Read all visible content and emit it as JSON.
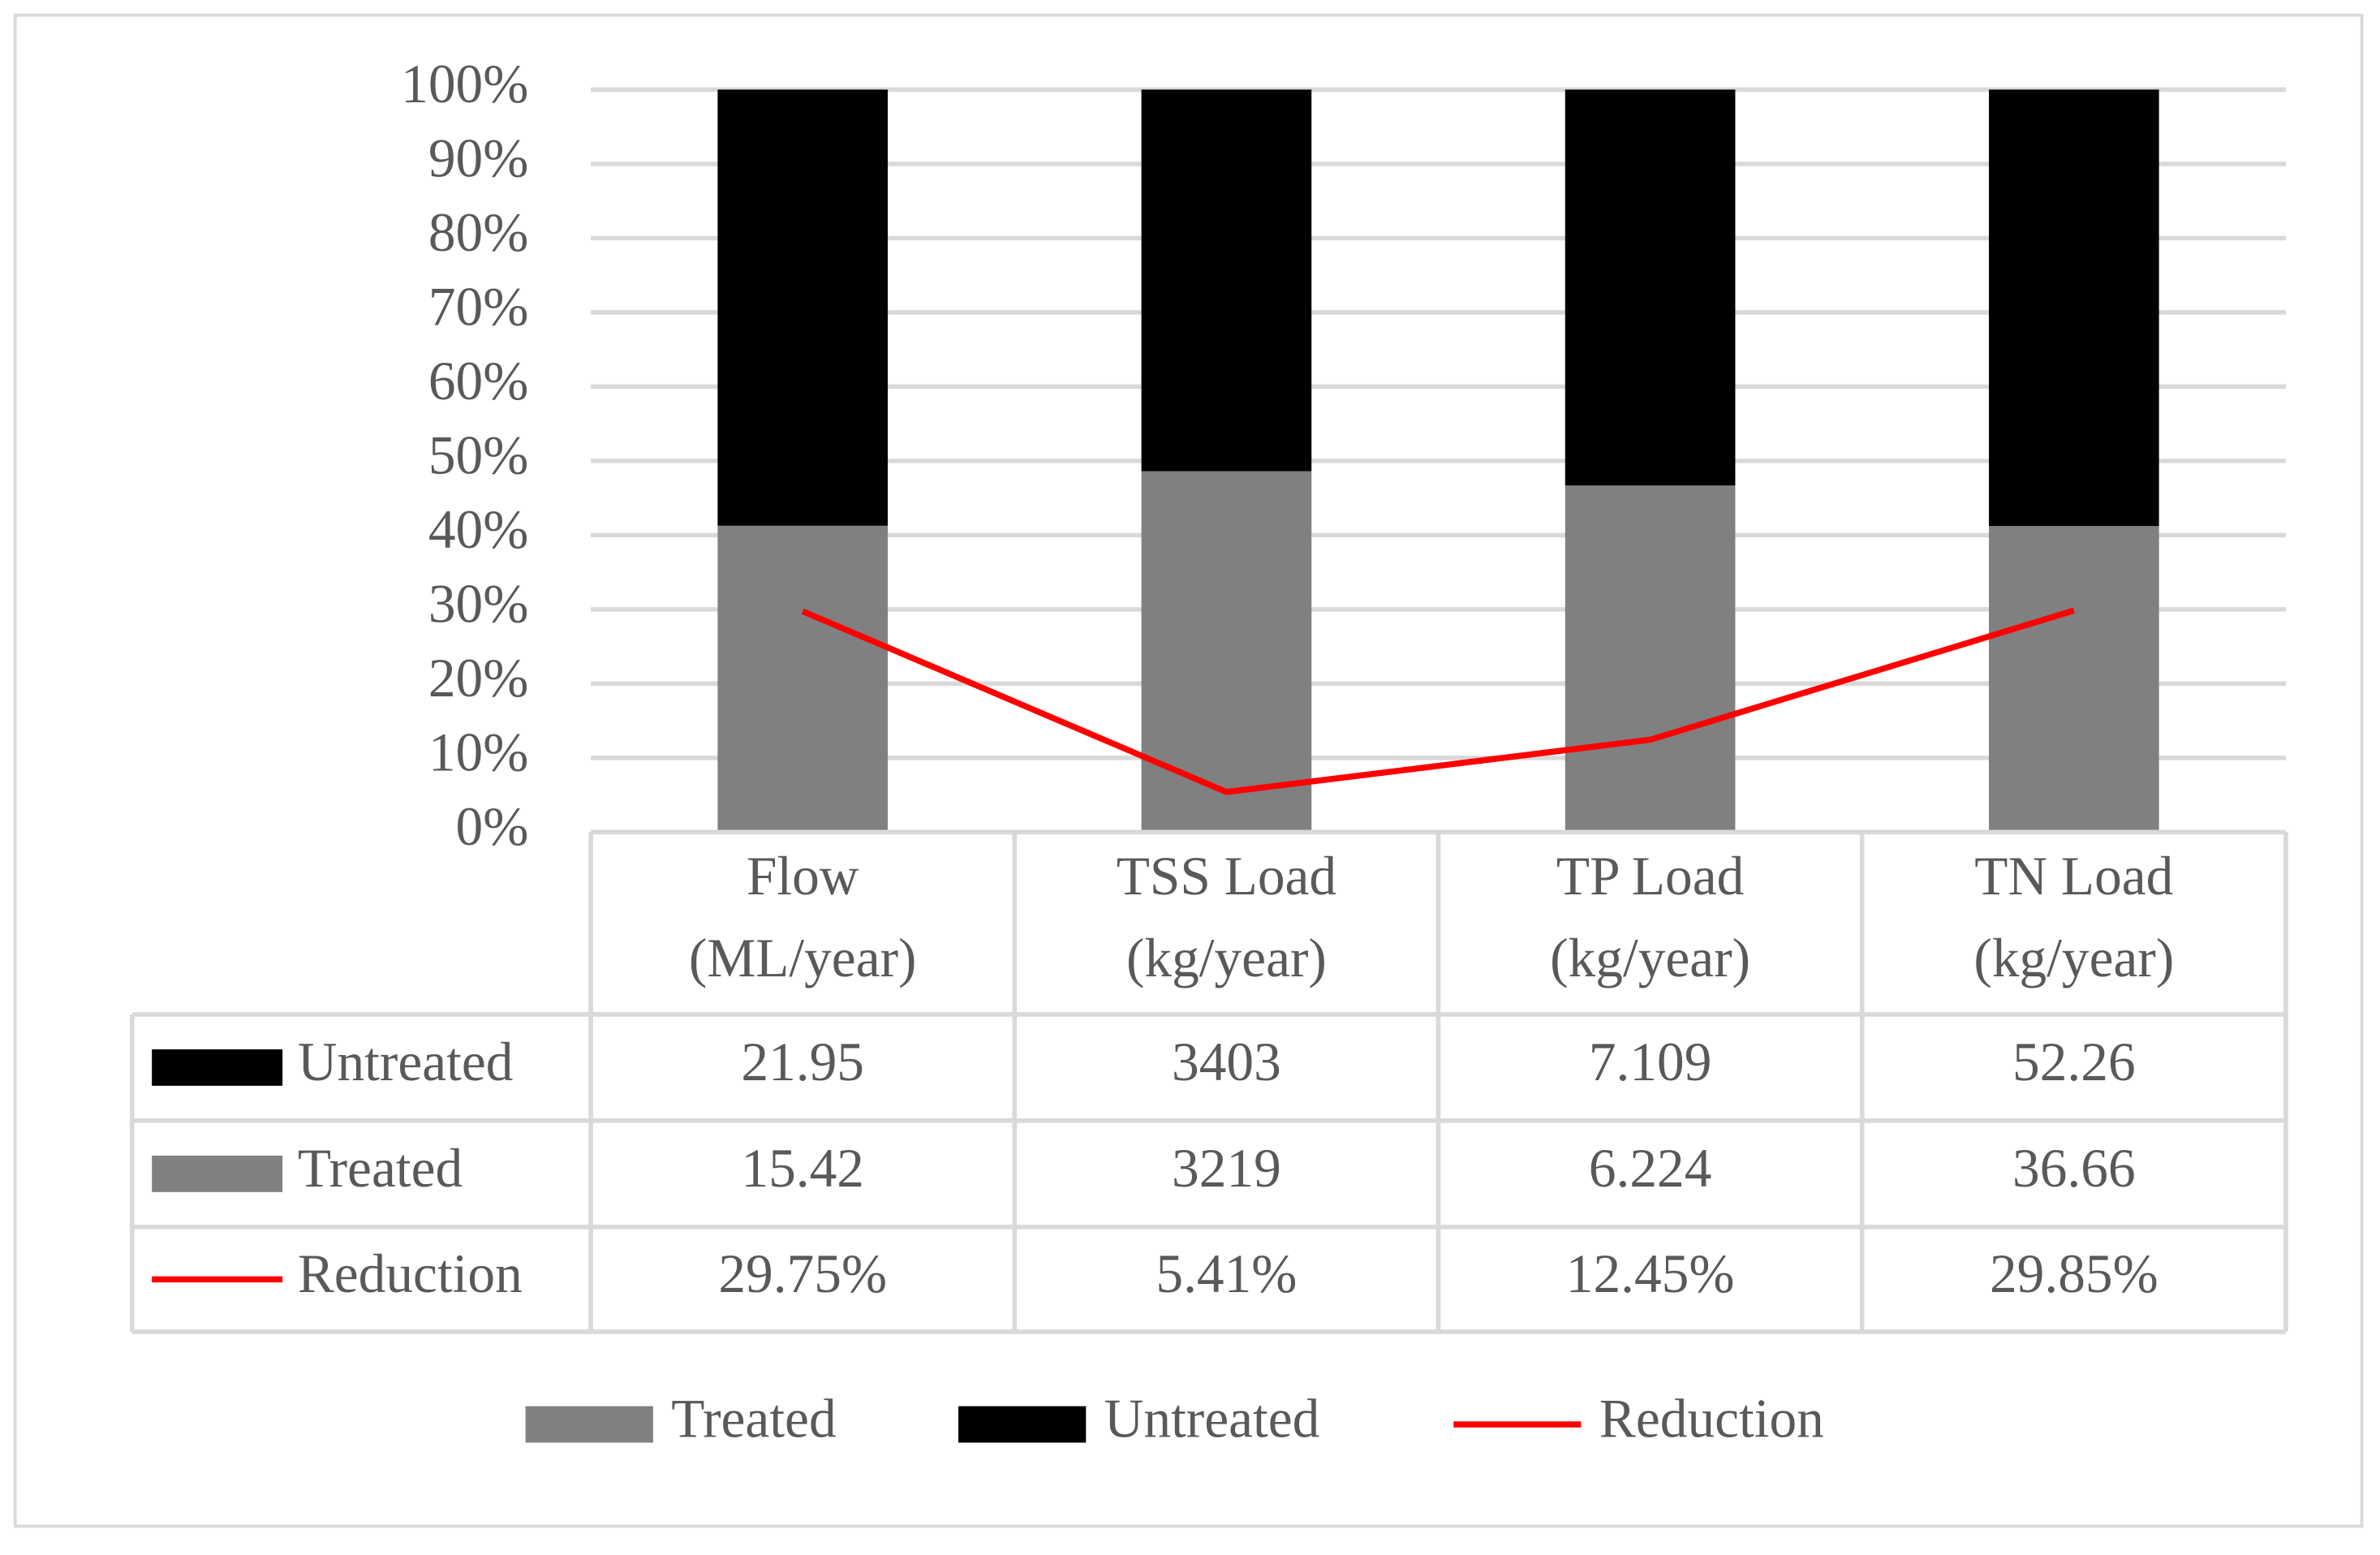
{
  "chart_data": {
    "type": "percent_stacked_bar_with_table",
    "categories": [
      "Flow (ML/year)",
      "TSS Load (kg/year)",
      "TP Load (kg/year)",
      "TN Load (kg/year)"
    ],
    "series": [
      {
        "name": "Treated",
        "color": "#808080",
        "type": "bar",
        "values": [
          15.42,
          3219,
          6.224,
          36.66
        ]
      },
      {
        "name": "Untreated",
        "color": "#000000",
        "type": "bar",
        "values": [
          21.95,
          3403,
          7.109,
          52.26
        ]
      },
      {
        "name": "Reduction",
        "color": "#ff0000",
        "type": "line",
        "values": [
          29.75,
          5.41,
          12.45,
          29.85
        ],
        "value_labels": [
          "29.75%",
          "5.41%",
          "12.45%",
          "29.85%"
        ]
      }
    ],
    "ylim": [
      0,
      100
    ],
    "yticks": [
      {
        "value": 0,
        "label": "0%"
      },
      {
        "value": 10,
        "label": "10%"
      },
      {
        "value": 20,
        "label": "20%"
      },
      {
        "value": 30,
        "label": "30%"
      },
      {
        "value": 40,
        "label": "40%"
      },
      {
        "value": 50,
        "label": "50%"
      },
      {
        "value": 60,
        "label": "60%"
      },
      {
        "value": 70,
        "label": "70%"
      },
      {
        "value": 80,
        "label": "80%"
      },
      {
        "value": 90,
        "label": "90%"
      },
      {
        "value": 100,
        "label": "100%"
      }
    ],
    "grid": true,
    "legend": "bottom"
  }
}
